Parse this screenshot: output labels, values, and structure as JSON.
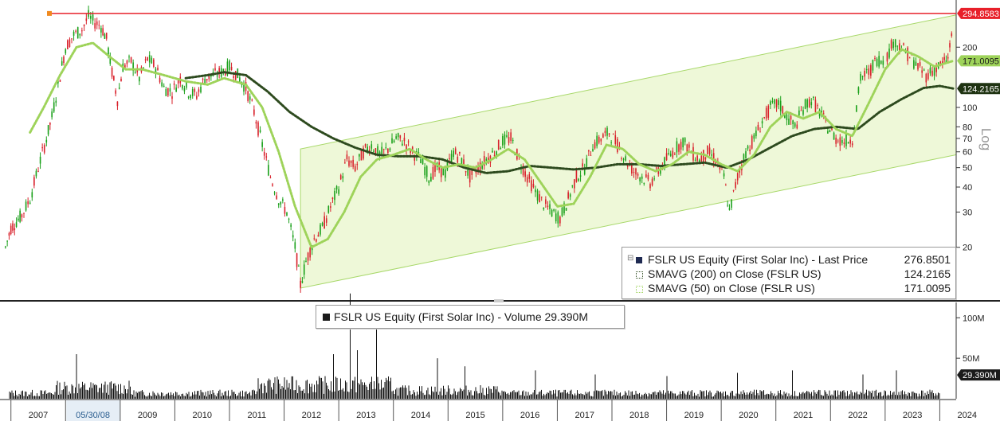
{
  "chart_data": [
    {
      "type": "line",
      "title": "FSLR US Equity (First Solar Inc)",
      "y_scale": "log",
      "y_label": "Log",
      "y_ticks": [
        20,
        30,
        40,
        50,
        60,
        70,
        80,
        100,
        200
      ],
      "ylim": [
        11,
        300
      ],
      "x_ticks": [
        "2007",
        "05/30/08",
        "2009",
        "2010",
        "2011",
        "2012",
        "2013",
        "2014",
        "2015",
        "2016",
        "2017",
        "2018",
        "2019",
        "2020",
        "2021",
        "2022",
        "2023",
        "2024"
      ],
      "xlim": [
        2006.8,
        2024.3
      ],
      "highlight_tick": "05/30/08",
      "horizontal_line": {
        "value": 294.8583,
        "label": "294.8583",
        "color": "#e8202a"
      },
      "series": [
        {
          "name": "FSLR US Equity (First Solar Inc) - Last Price",
          "style": "candlestick",
          "color_up": "#19a019",
          "color_down": "#d8202a",
          "last_value": "276.8501",
          "points": [
            [
              2006.9,
              20
            ],
            [
              2007.0,
              25
            ],
            [
              2007.2,
              29
            ],
            [
              2007.35,
              35
            ],
            [
              2007.5,
              50
            ],
            [
              2007.65,
              70
            ],
            [
              2007.75,
              90
            ],
            [
              2007.9,
              145
            ],
            [
              2008.0,
              200
            ],
            [
              2008.15,
              230
            ],
            [
              2008.3,
              245
            ],
            [
              2008.42,
              285
            ],
            [
              2008.5,
              270
            ],
            [
              2008.65,
              255
            ],
            [
              2008.75,
              220
            ],
            [
              2008.85,
              150
            ],
            [
              2008.95,
              110
            ],
            [
              2009.05,
              160
            ],
            [
              2009.2,
              170
            ],
            [
              2009.35,
              140
            ],
            [
              2009.5,
              175
            ],
            [
              2009.65,
              160
            ],
            [
              2009.8,
              125
            ],
            [
              2009.95,
              120
            ],
            [
              2010.1,
              140
            ],
            [
              2010.25,
              120
            ],
            [
              2010.4,
              115
            ],
            [
              2010.55,
              140
            ],
            [
              2010.7,
              145
            ],
            [
              2010.85,
              150
            ],
            [
              2011.0,
              160
            ],
            [
              2011.15,
              145
            ],
            [
              2011.3,
              125
            ],
            [
              2011.45,
              95
            ],
            [
              2011.6,
              65
            ],
            [
              2011.75,
              45
            ],
            [
              2011.9,
              35
            ],
            [
              2012.05,
              30
            ],
            [
              2012.2,
              20
            ],
            [
              2012.3,
              13
            ],
            [
              2012.4,
              17
            ],
            [
              2012.55,
              22
            ],
            [
              2012.7,
              25
            ],
            [
              2012.85,
              32
            ],
            [
              2013.0,
              40
            ],
            [
              2013.15,
              55
            ],
            [
              2013.3,
              50
            ],
            [
              2013.45,
              60
            ],
            [
              2013.6,
              65
            ],
            [
              2013.75,
              58
            ],
            [
              2013.9,
              62
            ],
            [
              2014.05,
              70
            ],
            [
              2014.2,
              68
            ],
            [
              2014.35,
              60
            ],
            [
              2014.5,
              55
            ],
            [
              2014.65,
              45
            ],
            [
              2014.8,
              50
            ],
            [
              2014.95,
              47
            ],
            [
              2015.1,
              60
            ],
            [
              2015.25,
              55
            ],
            [
              2015.4,
              45
            ],
            [
              2015.55,
              50
            ],
            [
              2015.7,
              55
            ],
            [
              2015.85,
              60
            ],
            [
              2016.0,
              68
            ],
            [
              2016.15,
              70
            ],
            [
              2016.3,
              55
            ],
            [
              2016.45,
              45
            ],
            [
              2016.6,
              38
            ],
            [
              2016.75,
              33
            ],
            [
              2016.9,
              30
            ],
            [
              2017.05,
              28
            ],
            [
              2017.2,
              35
            ],
            [
              2017.35,
              45
            ],
            [
              2017.5,
              50
            ],
            [
              2017.65,
              65
            ],
            [
              2017.8,
              70
            ],
            [
              2017.95,
              75
            ],
            [
              2018.1,
              65
            ],
            [
              2018.25,
              55
            ],
            [
              2018.4,
              48
            ],
            [
              2018.55,
              45
            ],
            [
              2018.7,
              42
            ],
            [
              2018.85,
              48
            ],
            [
              2019.0,
              55
            ],
            [
              2019.15,
              62
            ],
            [
              2019.3,
              68
            ],
            [
              2019.45,
              60
            ],
            [
              2019.6,
              55
            ],
            [
              2019.75,
              60
            ],
            [
              2019.9,
              55
            ],
            [
              2020.05,
              45
            ],
            [
              2020.15,
              30
            ],
            [
              2020.3,
              45
            ],
            [
              2020.45,
              60
            ],
            [
              2020.6,
              70
            ],
            [
              2020.75,
              85
            ],
            [
              2020.9,
              100
            ],
            [
              2021.05,
              105
            ],
            [
              2021.2,
              90
            ],
            [
              2021.35,
              80
            ],
            [
              2021.5,
              100
            ],
            [
              2021.65,
              110
            ],
            [
              2021.8,
              95
            ],
            [
              2021.95,
              80
            ],
            [
              2022.1,
              70
            ],
            [
              2022.25,
              68
            ],
            [
              2022.4,
              70
            ],
            [
              2022.55,
              140
            ],
            [
              2022.7,
              150
            ],
            [
              2022.85,
              175
            ],
            [
              2023.0,
              170
            ],
            [
              2023.15,
              215
            ],
            [
              2023.3,
              200
            ],
            [
              2023.45,
              180
            ],
            [
              2023.6,
              160
            ],
            [
              2023.75,
              145
            ],
            [
              2023.9,
              155
            ],
            [
              2024.05,
              165
            ],
            [
              2024.15,
              175
            ],
            [
              2024.25,
              276.85
            ]
          ]
        },
        {
          "name": "SMAVG (200) on Close (FSLR US)",
          "style": "dotted",
          "color": "#2d4a1e",
          "last_value": "124.2165",
          "points": [
            [
              2010.2,
              140
            ],
            [
              2010.6,
              145
            ],
            [
              2010.9,
              150
            ],
            [
              2011.3,
              145
            ],
            [
              2011.7,
              120
            ],
            [
              2012.1,
              95
            ],
            [
              2012.5,
              80
            ],
            [
              2012.9,
              70
            ],
            [
              2013.3,
              63
            ],
            [
              2013.7,
              58
            ],
            [
              2014.1,
              57
            ],
            [
              2014.5,
              57
            ],
            [
              2014.9,
              55
            ],
            [
              2015.3,
              50
            ],
            [
              2015.7,
              47
            ],
            [
              2016.1,
              48
            ],
            [
              2016.5,
              51
            ],
            [
              2016.9,
              50
            ],
            [
              2017.3,
              49
            ],
            [
              2017.7,
              50
            ],
            [
              2018.1,
              52
            ],
            [
              2018.5,
              52
            ],
            [
              2018.9,
              51
            ],
            [
              2019.3,
              52
            ],
            [
              2019.7,
              53
            ],
            [
              2020.1,
              50
            ],
            [
              2020.5,
              55
            ],
            [
              2020.9,
              63
            ],
            [
              2021.3,
              72
            ],
            [
              2021.7,
              78
            ],
            [
              2022.1,
              80
            ],
            [
              2022.5,
              78
            ],
            [
              2022.9,
              95
            ],
            [
              2023.3,
              110
            ],
            [
              2023.7,
              125
            ],
            [
              2024.0,
              128
            ],
            [
              2024.25,
              124.2
            ]
          ]
        },
        {
          "name": "SMAVG (50) on Close (FSLR US)",
          "style": "dotted",
          "color": "#9ed35a",
          "last_value": "171.0095",
          "points": [
            [
              2007.35,
              75
            ],
            [
              2007.6,
              100
            ],
            [
              2007.9,
              145
            ],
            [
              2008.2,
              200
            ],
            [
              2008.5,
              210
            ],
            [
              2008.8,
              180
            ],
            [
              2009.1,
              155
            ],
            [
              2009.4,
              155
            ],
            [
              2009.8,
              145
            ],
            [
              2010.2,
              135
            ],
            [
              2010.6,
              130
            ],
            [
              2010.9,
              140
            ],
            [
              2011.3,
              130
            ],
            [
              2011.6,
              100
            ],
            [
              2011.9,
              60
            ],
            [
              2012.2,
              32
            ],
            [
              2012.5,
              20
            ],
            [
              2012.8,
              22
            ],
            [
              2013.1,
              30
            ],
            [
              2013.4,
              45
            ],
            [
              2013.7,
              55
            ],
            [
              2014.0,
              58
            ],
            [
              2014.3,
              62
            ],
            [
              2014.6,
              55
            ],
            [
              2014.9,
              50
            ],
            [
              2015.2,
              52
            ],
            [
              2015.5,
              50
            ],
            [
              2015.8,
              55
            ],
            [
              2016.1,
              62
            ],
            [
              2016.4,
              55
            ],
            [
              2016.7,
              42
            ],
            [
              2017.0,
              32
            ],
            [
              2017.3,
              33
            ],
            [
              2017.6,
              45
            ],
            [
              2017.9,
              65
            ],
            [
              2018.2,
              62
            ],
            [
              2018.5,
              52
            ],
            [
              2018.8,
              48
            ],
            [
              2019.1,
              52
            ],
            [
              2019.4,
              60
            ],
            [
              2019.7,
              58
            ],
            [
              2020.0,
              52
            ],
            [
              2020.3,
              48
            ],
            [
              2020.6,
              58
            ],
            [
              2020.9,
              80
            ],
            [
              2021.2,
              95
            ],
            [
              2021.5,
              88
            ],
            [
              2021.8,
              95
            ],
            [
              2022.1,
              78
            ],
            [
              2022.4,
              72
            ],
            [
              2022.7,
              105
            ],
            [
              2023.0,
              155
            ],
            [
              2023.3,
              195
            ],
            [
              2023.6,
              180
            ],
            [
              2023.9,
              160
            ],
            [
              2024.25,
              171.0
            ]
          ]
        }
      ],
      "channel": [
        {
          "x": 2012.3,
          "value": 12.5
        },
        {
          "x": 2024.3,
          "value": 58
        },
        {
          "x": 2024.3,
          "value": 290
        },
        {
          "x": 2012.3,
          "value": 62
        }
      ],
      "y_value_tags": [
        {
          "value": "294.8583",
          "color": "#e8202a"
        },
        {
          "value": "171.0095",
          "color": "#9ed35a"
        },
        {
          "value": "124.2165",
          "color": "#1f3312"
        }
      ]
    },
    {
      "type": "bar",
      "title": "FSLR US Equity (First Solar Inc) - Volume",
      "last_value": "29.390M",
      "y_ticks": [
        "100M",
        "50M"
      ],
      "last_tag": "29.390M",
      "ylim": [
        0,
        115
      ],
      "unit": "M",
      "spikes": [
        [
          2008.2,
          55
        ],
        [
          2012.9,
          55
        ],
        [
          2013.2,
          130
        ],
        [
          2013.35,
          60
        ],
        [
          2013.7,
          105
        ],
        [
          2014.8,
          50
        ],
        [
          2015.3,
          40
        ],
        [
          2016.6,
          35
        ],
        [
          2017.7,
          30
        ],
        [
          2019.0,
          28
        ],
        [
          2020.3,
          32
        ],
        [
          2021.3,
          35
        ],
        [
          2022.6,
          30
        ],
        [
          2023.2,
          35
        ],
        [
          2024.1,
          40
        ]
      ]
    }
  ],
  "legend": {
    "price_label": "FSLR US Equity (First Solar Inc) - Last Price",
    "price_value": "276.8501",
    "sma200_label": "SMAVG (200)  on Close (FSLR US)",
    "sma200_value": "124.2165",
    "sma50_label": "SMAVG (50)  on Close (FSLR US)",
    "sma50_value": "171.0095"
  },
  "volume_legend": {
    "label": "FSLR US Equity (First Solar Inc) - Volume 29.390M"
  },
  "axis": {
    "scale_label": "Log",
    "price_color_up": "#19a019",
    "price_color_down": "#d8202a"
  }
}
